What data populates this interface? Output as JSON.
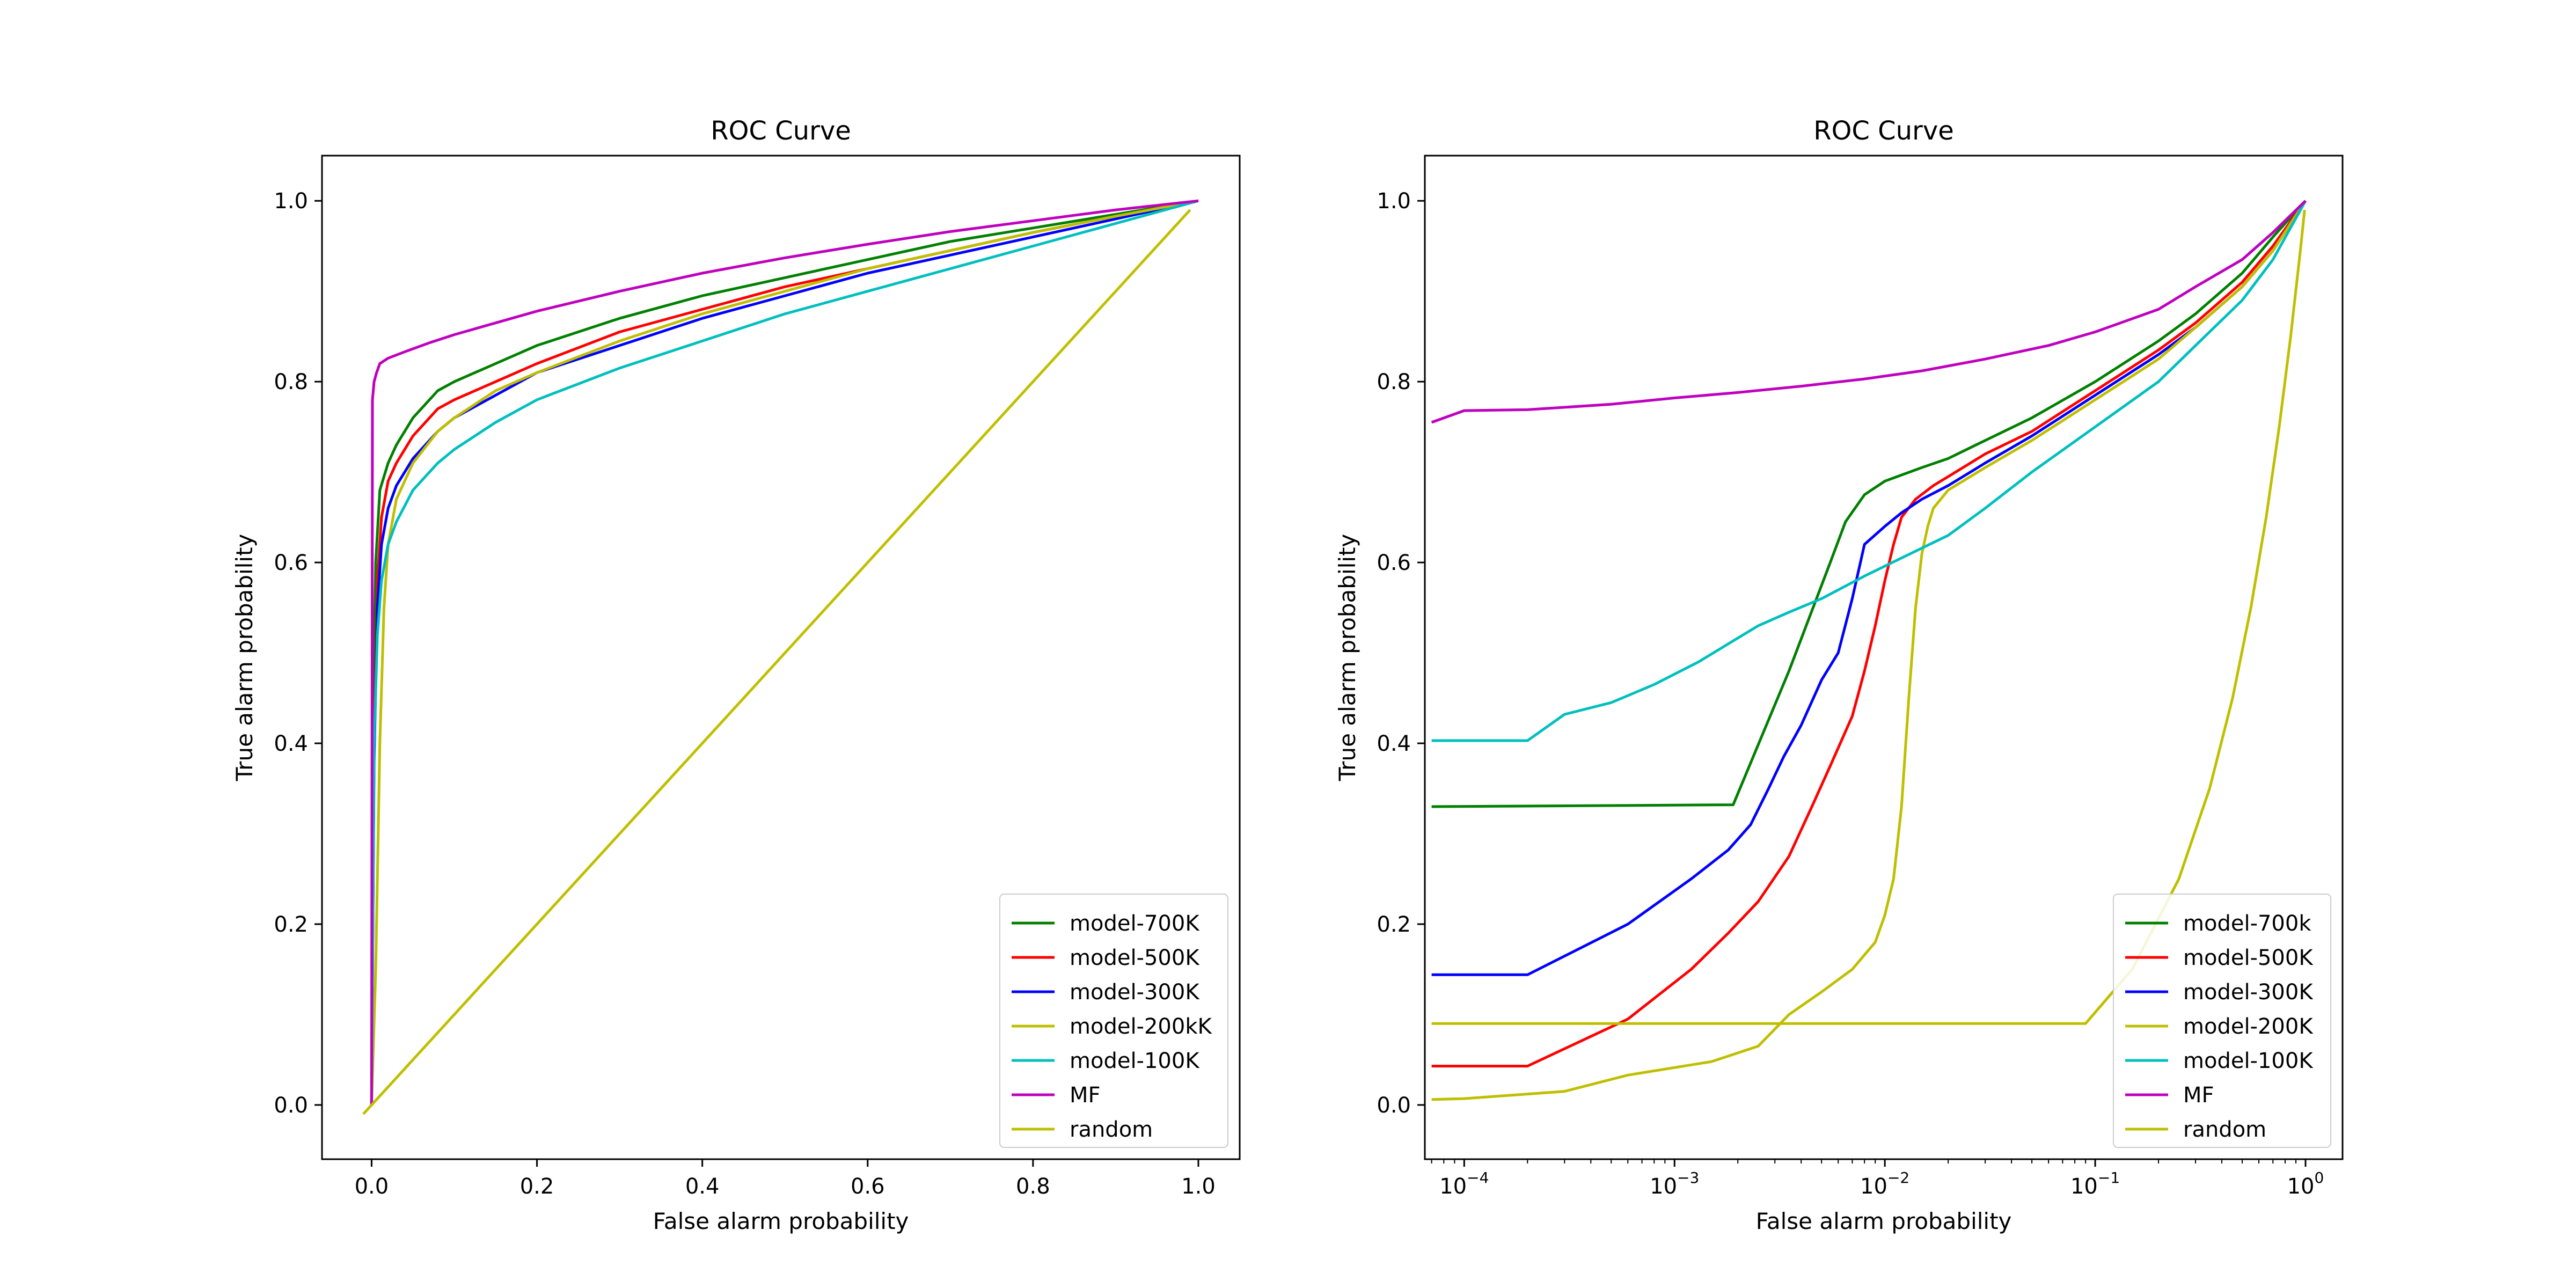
{
  "colors": {
    "model_700k": "#008000",
    "model_500k": "#ff0000",
    "model_300k": "#0000ff",
    "model_200k": "#bfbf00",
    "model_100k": "#00bfbf",
    "mf": "#bf00bf",
    "random": "#bfbf00"
  },
  "chart_data": [
    {
      "type": "line",
      "title": "ROC Curve",
      "xlabel": "False alarm probability",
      "ylabel": "True alarm probability",
      "xscale": "linear",
      "xlim": [
        -0.06,
        1.05
      ],
      "ylim": [
        -0.06,
        1.05
      ],
      "xticks": [
        0.0,
        0.2,
        0.4,
        0.6,
        0.8,
        1.0
      ],
      "xtick_labels": [
        "0.0",
        "0.2",
        "0.4",
        "0.6",
        "0.8",
        "1.0"
      ],
      "yticks": [
        0.0,
        0.2,
        0.4,
        0.6,
        0.8,
        1.0
      ],
      "ytick_labels": [
        "0.0",
        "0.2",
        "0.4",
        "0.6",
        "0.8",
        "1.0"
      ],
      "grid": false,
      "legend_position": "lower-right",
      "series": [
        {
          "name": "model-700K",
          "color": "#008000",
          "x": [
            0.0,
            0.002,
            0.005,
            0.01,
            0.02,
            0.03,
            0.05,
            0.08,
            0.1,
            0.15,
            0.2,
            0.3,
            0.4,
            0.5,
            0.6,
            0.7,
            0.8,
            0.9,
            1.0
          ],
          "y": [
            0.0,
            0.45,
            0.6,
            0.68,
            0.71,
            0.73,
            0.76,
            0.79,
            0.8,
            0.82,
            0.84,
            0.87,
            0.895,
            0.915,
            0.935,
            0.955,
            0.97,
            0.985,
            1.0
          ]
        },
        {
          "name": "model-500K",
          "color": "#ff0000",
          "x": [
            0.0,
            0.003,
            0.007,
            0.012,
            0.02,
            0.03,
            0.05,
            0.08,
            0.1,
            0.15,
            0.2,
            0.3,
            0.4,
            0.5,
            0.6,
            0.7,
            0.8,
            0.9,
            1.0
          ],
          "y": [
            0.0,
            0.4,
            0.58,
            0.65,
            0.69,
            0.71,
            0.74,
            0.77,
            0.78,
            0.8,
            0.82,
            0.855,
            0.88,
            0.905,
            0.925,
            0.945,
            0.965,
            0.983,
            1.0
          ]
        },
        {
          "name": "model-300K",
          "color": "#0000ff",
          "x": [
            0.0,
            0.003,
            0.007,
            0.012,
            0.02,
            0.03,
            0.05,
            0.08,
            0.1,
            0.15,
            0.2,
            0.3,
            0.4,
            0.5,
            0.6,
            0.7,
            0.8,
            0.9,
            1.0
          ],
          "y": [
            0.0,
            0.38,
            0.55,
            0.62,
            0.66,
            0.685,
            0.715,
            0.745,
            0.76,
            0.785,
            0.81,
            0.84,
            0.87,
            0.895,
            0.92,
            0.94,
            0.96,
            0.98,
            1.0
          ]
        },
        {
          "name": "model-200kK",
          "color": "#bfbf00",
          "x": [
            0.0,
            0.005,
            0.01,
            0.015,
            0.02,
            0.03,
            0.05,
            0.08,
            0.1,
            0.15,
            0.2,
            0.3,
            0.4,
            0.5,
            0.6,
            0.7,
            0.8,
            0.9,
            1.0
          ],
          "y": [
            0.0,
            0.15,
            0.4,
            0.55,
            0.62,
            0.67,
            0.71,
            0.745,
            0.76,
            0.79,
            0.81,
            0.845,
            0.875,
            0.9,
            0.925,
            0.945,
            0.965,
            0.983,
            1.0
          ]
        },
        {
          "name": "model-100K",
          "color": "#00bfbf",
          "x": [
            0.0,
            0.003,
            0.007,
            0.012,
            0.02,
            0.03,
            0.05,
            0.08,
            0.1,
            0.15,
            0.2,
            0.3,
            0.4,
            0.5,
            0.6,
            0.7,
            0.8,
            0.9,
            1.0
          ],
          "y": [
            0.0,
            0.4,
            0.52,
            0.58,
            0.62,
            0.645,
            0.68,
            0.71,
            0.725,
            0.755,
            0.78,
            0.815,
            0.845,
            0.875,
            0.9,
            0.925,
            0.95,
            0.975,
            1.0
          ]
        },
        {
          "name": "MF",
          "color": "#bf00bf",
          "x": [
            0.0,
            0.001,
            0.003,
            0.006,
            0.01,
            0.02,
            0.04,
            0.07,
            0.1,
            0.15,
            0.2,
            0.3,
            0.4,
            0.5,
            0.6,
            0.7,
            0.8,
            0.9,
            1.0
          ],
          "y": [
            0.0,
            0.78,
            0.8,
            0.81,
            0.82,
            0.826,
            0.833,
            0.843,
            0.852,
            0.865,
            0.878,
            0.9,
            0.92,
            0.937,
            0.952,
            0.966,
            0.978,
            0.99,
            1.0
          ]
        },
        {
          "name": "random",
          "color": "#bfbf00",
          "x": [
            -0.01,
            0.99
          ],
          "y": [
            -0.01,
            0.99
          ]
        }
      ]
    },
    {
      "type": "line",
      "title": "ROC Curve",
      "xlabel": "False alarm probability",
      "ylabel": "True alarm probability",
      "xscale": "log",
      "xlim": [
        6.5e-05,
        1.5
      ],
      "ylim": [
        -0.06,
        1.05
      ],
      "xticks": [
        0.0001,
        0.001,
        0.01,
        0.1,
        1.0
      ],
      "xtick_labels": [
        "10",
        "10",
        "10",
        "10",
        "10"
      ],
      "xtick_exponents": [
        "−4",
        "−3",
        "−2",
        "−1",
        "0"
      ],
      "yticks": [
        0.0,
        0.2,
        0.4,
        0.6,
        0.8,
        1.0
      ],
      "ytick_labels": [
        "0.0",
        "0.2",
        "0.4",
        "0.6",
        "0.8",
        "1.0"
      ],
      "grid": false,
      "legend_position": "lower-right",
      "series": [
        {
          "name": "model-700k",
          "color": "#008000",
          "x": [
            7e-05,
            0.0019,
            0.0035,
            0.0055,
            0.0065,
            0.008,
            0.01,
            0.015,
            0.02,
            0.03,
            0.05,
            0.1,
            0.2,
            0.3,
            0.5,
            0.7,
            1.0
          ],
          "y": [
            0.33,
            0.332,
            0.48,
            0.6,
            0.645,
            0.675,
            0.69,
            0.705,
            0.715,
            0.735,
            0.76,
            0.8,
            0.845,
            0.875,
            0.92,
            0.96,
            1.0
          ]
        },
        {
          "name": "model-500K",
          "color": "#ff0000",
          "x": [
            7e-05,
            0.0002,
            0.0006,
            0.0012,
            0.0018,
            0.0025,
            0.0035,
            0.0045,
            0.0055,
            0.007,
            0.008,
            0.009,
            0.01,
            0.011,
            0.012,
            0.014,
            0.017,
            0.02,
            0.03,
            0.05,
            0.1,
            0.2,
            0.3,
            0.5,
            0.7,
            1.0
          ],
          "y": [
            0.043,
            0.043,
            0.095,
            0.15,
            0.19,
            0.225,
            0.275,
            0.33,
            0.375,
            0.43,
            0.48,
            0.53,
            0.58,
            0.62,
            0.65,
            0.67,
            0.685,
            0.695,
            0.72,
            0.745,
            0.79,
            0.835,
            0.865,
            0.91,
            0.95,
            1.0
          ]
        },
        {
          "name": "model-300K",
          "color": "#0000ff",
          "x": [
            7e-05,
            0.0002,
            0.0006,
            0.0012,
            0.0018,
            0.0023,
            0.0028,
            0.0033,
            0.004,
            0.005,
            0.006,
            0.007,
            0.008,
            0.01,
            0.012,
            0.015,
            0.02,
            0.03,
            0.05,
            0.1,
            0.2,
            0.3,
            0.5,
            0.7,
            1.0
          ],
          "y": [
            0.144,
            0.144,
            0.2,
            0.25,
            0.282,
            0.31,
            0.35,
            0.385,
            0.42,
            0.47,
            0.5,
            0.56,
            0.62,
            0.64,
            0.655,
            0.67,
            0.685,
            0.71,
            0.74,
            0.785,
            0.83,
            0.86,
            0.905,
            0.945,
            1.0
          ]
        },
        {
          "name": "model-200K",
          "color": "#bfbf00",
          "x": [
            7e-05,
            0.0001,
            0.0003,
            0.0006,
            0.0015,
            0.0025,
            0.0035,
            0.005,
            0.007,
            0.009,
            0.01,
            0.011,
            0.012,
            0.013,
            0.014,
            0.015,
            0.016,
            0.017,
            0.02,
            0.03,
            0.05,
            0.1,
            0.2,
            0.3,
            0.5,
            0.7,
            1.0
          ],
          "y": [
            0.006,
            0.007,
            0.015,
            0.033,
            0.048,
            0.065,
            0.1,
            0.125,
            0.15,
            0.18,
            0.21,
            0.25,
            0.33,
            0.45,
            0.55,
            0.61,
            0.64,
            0.66,
            0.68,
            0.705,
            0.735,
            0.78,
            0.825,
            0.86,
            0.905,
            0.945,
            1.0
          ]
        },
        {
          "name": "model-100K",
          "color": "#00bfbf",
          "x": [
            7e-05,
            0.0002,
            0.0003,
            0.0005,
            0.0008,
            0.0013,
            0.0018,
            0.0025,
            0.0035,
            0.005,
            0.008,
            0.012,
            0.02,
            0.03,
            0.05,
            0.1,
            0.2,
            0.3,
            0.5,
            0.7,
            1.0
          ],
          "y": [
            0.403,
            0.403,
            0.432,
            0.445,
            0.465,
            0.49,
            0.51,
            0.53,
            0.545,
            0.56,
            0.585,
            0.605,
            0.63,
            0.66,
            0.7,
            0.75,
            0.8,
            0.84,
            0.89,
            0.935,
            1.0
          ]
        },
        {
          "name": "MF",
          "color": "#bf00bf",
          "x": [
            7e-05,
            0.0001,
            0.0002,
            0.0005,
            0.001,
            0.002,
            0.004,
            0.008,
            0.015,
            0.03,
            0.06,
            0.1,
            0.2,
            0.3,
            0.5,
            0.7,
            1.0
          ],
          "y": [
            0.755,
            0.768,
            0.769,
            0.775,
            0.782,
            0.788,
            0.795,
            0.803,
            0.812,
            0.825,
            0.84,
            0.855,
            0.88,
            0.905,
            0.935,
            0.965,
            1.0
          ]
        },
        {
          "name": "random",
          "color": "#bfbf00",
          "x": [
            7e-05,
            0.09,
            0.15,
            0.25,
            0.35,
            0.45,
            0.55,
            0.65,
            0.75,
            0.85,
            0.95,
            0.99
          ],
          "y": [
            0.09,
            0.09,
            0.15,
            0.25,
            0.35,
            0.45,
            0.55,
            0.65,
            0.75,
            0.85,
            0.95,
            0.99
          ]
        }
      ]
    }
  ]
}
